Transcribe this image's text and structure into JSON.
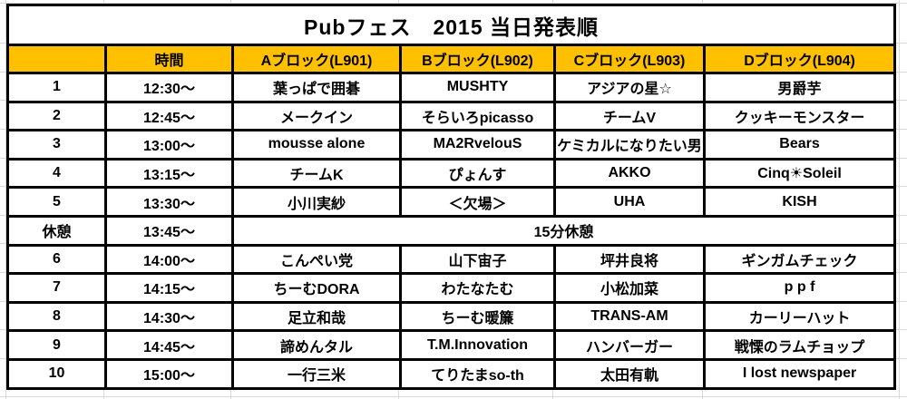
{
  "title": "Pubフェス　2015 当日発表順",
  "table": {
    "columns": [
      "",
      "時間",
      "Aブロック(L901)",
      "Bブロック(L902)",
      "Cブロック(L903)",
      "Dブロック(L904)"
    ],
    "rows": [
      {
        "no": "1",
        "time": "12:30～",
        "blocks": [
          "葉っぱで囲碁",
          "MUSHTY",
          "アジアの星☆",
          "男爵芋"
        ]
      },
      {
        "no": "2",
        "time": "12:45～",
        "blocks": [
          "メークイン",
          "そらいろpicasso",
          "チームV",
          "クッキーモンスター"
        ]
      },
      {
        "no": "3",
        "time": "13:00～",
        "blocks": [
          "mousse alone",
          "MA2RvelouS",
          "ケミカルになりたい男",
          "Bears"
        ]
      },
      {
        "no": "4",
        "time": "13:15～",
        "blocks": [
          "チームK",
          "ぴょんす",
          "AKKO",
          "Cinq☀Soleil"
        ]
      },
      {
        "no": "5",
        "time": "13:30～",
        "blocks": [
          "小川実紗",
          "＜欠場＞",
          "UHA",
          "KISH"
        ]
      },
      {
        "no": "休憩",
        "time": "13:45～",
        "span": "15分休憩"
      },
      {
        "no": "6",
        "time": "14:00～",
        "blocks": [
          "こんぺい党",
          "山下宙子",
          "坪井良将",
          "ギンガムチェック"
        ]
      },
      {
        "no": "7",
        "time": "14:15～",
        "blocks": [
          "ちーむDORA",
          "わたなたむ",
          "小松加菜",
          "p p f"
        ]
      },
      {
        "no": "8",
        "time": "14:30～",
        "blocks": [
          "足立和哉",
          "ちーむ暖簾",
          "TRANS-AM",
          "カーリーハット"
        ]
      },
      {
        "no": "9",
        "time": "14:45～",
        "blocks": [
          "諦めんタル",
          "T.M.Innovation",
          "ハンバーガー",
          "戦慄のラムチョップ"
        ]
      },
      {
        "no": "10",
        "time": "15:00～",
        "blocks": [
          "一行三米",
          "てりたまso-th",
          "太田有軌",
          "I lost newspaper"
        ]
      }
    ]
  },
  "colors": {
    "accent": "#FFC000",
    "border": "#000000",
    "cell_bg": "#FFFFFF",
    "text": "#000000",
    "gridline": "#D9D9D9"
  }
}
